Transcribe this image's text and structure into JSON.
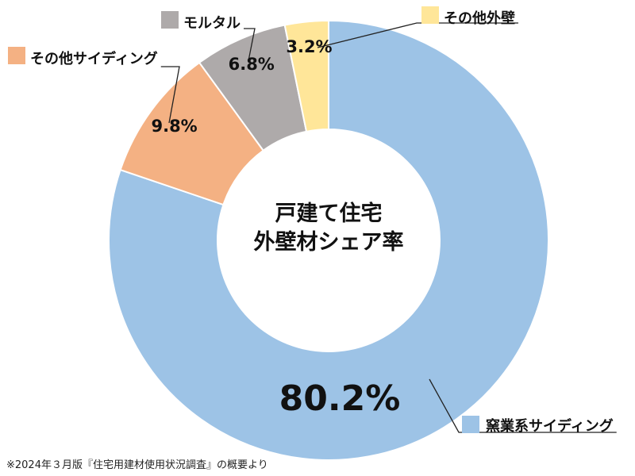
{
  "chart_data": {
    "type": "pie",
    "title_lines": [
      "戸建て住宅",
      "外壁材シェア率"
    ],
    "slices": [
      {
        "label": "窯業系サイディング",
        "value": 80.2,
        "value_label": "80.2%",
        "color": "#9dc3e6"
      },
      {
        "label": "その他サイディング",
        "value": 9.8,
        "value_label": "9.8%",
        "color": "#f4b183"
      },
      {
        "label": "モルタル",
        "value": 6.8,
        "value_label": "6.8%",
        "color": "#aeaaaa"
      },
      {
        "label": "その他外壁",
        "value": 3.2,
        "value_label": "3.2%",
        "color": "#ffe699"
      }
    ],
    "footnote": "※2024年３月版『住宅用建材使用状況調査』の概要より"
  }
}
